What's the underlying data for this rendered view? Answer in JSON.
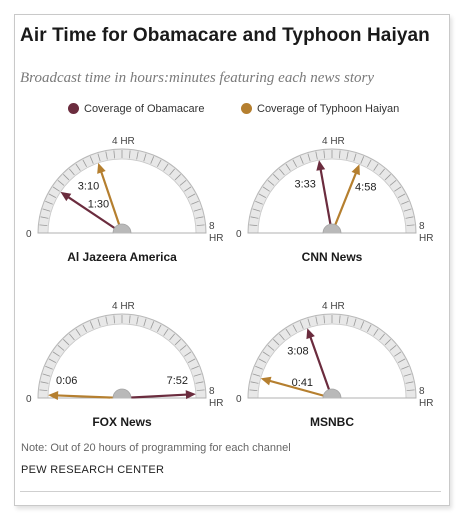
{
  "title": "Air Time for Obamacare and Typhoon Haiyan",
  "subtitle": "Broadcast time in hours:minutes featuring each news story",
  "legend": [
    {
      "label": "Coverage of Obamacare",
      "color": "#6b2c3e"
    },
    {
      "label": "Coverage of Typhoon Haiyan",
      "color": "#b57f2f"
    }
  ],
  "scale": {
    "min_label": "0",
    "mid_label": "4 HR",
    "max_label_line1": "8",
    "max_label_line2": "HR"
  },
  "chart_data": {
    "type": "gauge",
    "unit": "hours",
    "range": [
      0,
      8
    ],
    "series": [
      {
        "name": "Coverage of Obamacare",
        "color": "#6b2c3e"
      },
      {
        "name": "Coverage of Typhoon Haiyan",
        "color": "#b57f2f"
      }
    ],
    "channels": [
      {
        "name": "Al Jazeera America",
        "obamacare": "1:30",
        "obamacare_hours": 1.5,
        "haiyan": "3:10",
        "haiyan_hours": 3.1667
      },
      {
        "name": "CNN News",
        "obamacare": "3:33",
        "obamacare_hours": 3.55,
        "haiyan": "4:58",
        "haiyan_hours": 4.9667
      },
      {
        "name": "FOX News",
        "obamacare": "7:52",
        "obamacare_hours": 7.8667,
        "haiyan": "0:06",
        "haiyan_hours": 0.1
      },
      {
        "name": "MSNBC",
        "obamacare": "3:08",
        "obamacare_hours": 3.1333,
        "haiyan": "0:41",
        "haiyan_hours": 0.6833
      }
    ]
  },
  "note": "Note: Out of 20 hours of programming for each channel",
  "source": "PEW RESEARCH CENTER"
}
